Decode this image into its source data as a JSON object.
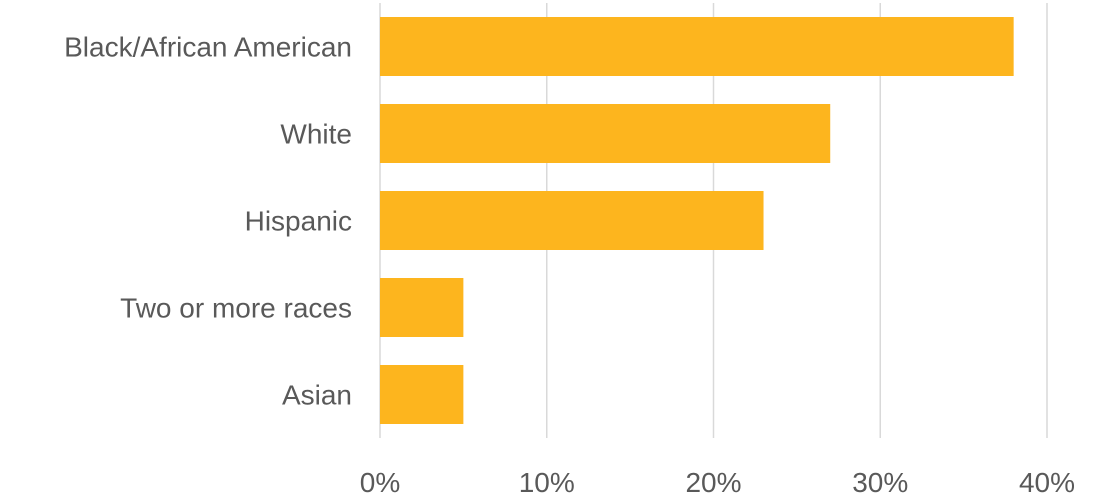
{
  "chart_data": {
    "type": "bar",
    "orientation": "horizontal",
    "categories": [
      "Black/African American",
      "White",
      "Hispanic",
      "Two or more races",
      "Asian"
    ],
    "values": [
      38,
      27,
      23,
      5,
      5
    ],
    "value_unit": "%",
    "xlim": [
      0,
      40
    ],
    "x_ticks": [
      0,
      10,
      20,
      30,
      40
    ],
    "x_tick_labels": [
      "0%",
      "10%",
      "20%",
      "30%",
      "40%"
    ],
    "grid": "vertical",
    "legend": "none",
    "title": "",
    "xlabel": "",
    "ylabel": ""
  },
  "colors": {
    "bar": "#FDB51E",
    "gridline": "#D9D9D9",
    "label_text": "#595959"
  }
}
